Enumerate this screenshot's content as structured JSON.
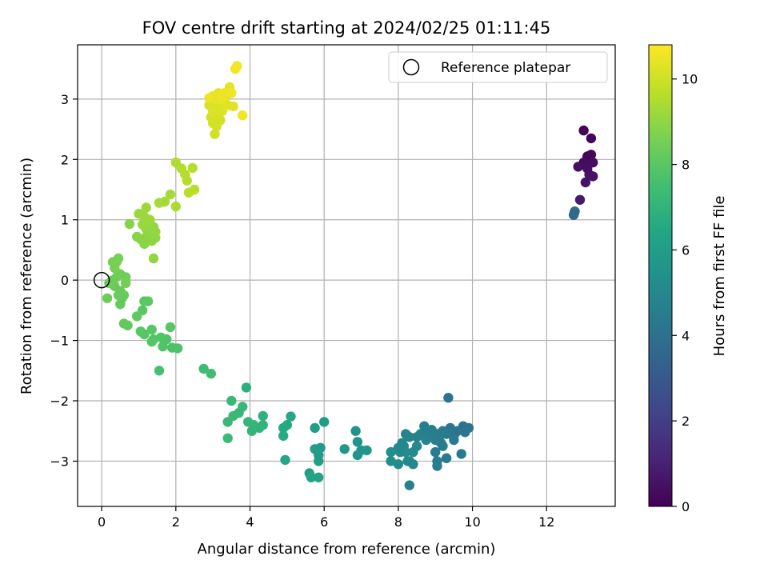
{
  "chart_data": {
    "type": "scatter",
    "title": "FOV centre drift starting at 2024/02/25 01:11:45",
    "xlabel": "Angular distance from reference (arcmin)",
    "ylabel": "Rotation from reference (arcmin)",
    "xlim": [
      -0.65,
      13.85
    ],
    "ylim": [
      -3.75,
      3.9
    ],
    "xticks": [
      0,
      2,
      4,
      6,
      8,
      10,
      12
    ],
    "xtick_labels": [
      "0",
      "2",
      "4",
      "6",
      "8",
      "10",
      "12"
    ],
    "yticks": [
      -3,
      -2,
      -1,
      0,
      1,
      2,
      3
    ],
    "ytick_labels": [
      "−3",
      "−2",
      "−1",
      "0",
      "1",
      "2",
      "3"
    ],
    "grid": true,
    "legend": {
      "position": "top-right",
      "entries": [
        "Reference platepar"
      ]
    },
    "reference_point": {
      "x": 0,
      "y": 0,
      "label": "Reference platepar"
    },
    "colorbar": {
      "label": "Hours from first FF file",
      "range": [
        0,
        10.8
      ],
      "ticks": [
        0,
        2,
        4,
        6,
        8,
        10
      ],
      "tick_labels": [
        "0",
        "2",
        "4",
        "6",
        "8",
        "10"
      ],
      "colormap": "viridis"
    },
    "points": [
      [
        13.0,
        2.48,
        0.1
      ],
      [
        13.2,
        2.35,
        0.15
      ],
      [
        13.1,
        2.05,
        0.2
      ],
      [
        13.2,
        2.08,
        0.25
      ],
      [
        13.0,
        1.95,
        0.3
      ],
      [
        13.25,
        1.95,
        0.35
      ],
      [
        12.85,
        1.88,
        0.4
      ],
      [
        13.1,
        1.85,
        0.45
      ],
      [
        13.15,
        1.75,
        0.5
      ],
      [
        13.25,
        1.72,
        0.55
      ],
      [
        13.05,
        1.62,
        0.6
      ],
      [
        12.9,
        1.33,
        0.8
      ],
      [
        12.75,
        1.12,
        3.5
      ],
      [
        12.73,
        1.08,
        3.6
      ],
      [
        12.76,
        1.14,
        3.7
      ],
      [
        9.35,
        -1.95,
        4.1
      ],
      [
        9.9,
        -2.45,
        4.1
      ],
      [
        9.75,
        -2.42,
        4.15
      ],
      [
        9.6,
        -2.5,
        4.2
      ],
      [
        9.5,
        -2.58,
        4.2
      ],
      [
        9.8,
        -2.52,
        4.25
      ],
      [
        9.4,
        -2.45,
        4.3
      ],
      [
        9.3,
        -2.55,
        4.35
      ],
      [
        9.1,
        -2.6,
        4.4
      ],
      [
        9.2,
        -2.5,
        4.45
      ],
      [
        9.05,
        -2.55,
        4.5
      ],
      [
        9.15,
        -2.7,
        4.5
      ],
      [
        9.0,
        -2.65,
        4.55
      ],
      [
        8.9,
        -2.48,
        4.6
      ],
      [
        8.8,
        -2.55,
        4.6
      ],
      [
        8.7,
        -2.42,
        4.65
      ],
      [
        8.6,
        -2.55,
        4.7
      ],
      [
        8.75,
        -2.65,
        4.75
      ],
      [
        8.5,
        -2.6,
        4.8
      ],
      [
        9.5,
        -2.65,
        4.35
      ],
      [
        9.7,
        -2.88,
        4.3
      ],
      [
        9.3,
        -2.95,
        4.4
      ],
      [
        9.2,
        -2.75,
        4.45
      ],
      [
        9.0,
        -2.85,
        4.5
      ],
      [
        9.05,
        -3.0,
        4.55
      ],
      [
        9.05,
        -3.08,
        4.6
      ],
      [
        8.3,
        -3.4,
        4.7
      ],
      [
        8.2,
        -2.55,
        4.8
      ],
      [
        8.3,
        -2.6,
        4.85
      ],
      [
        8.1,
        -2.7,
        4.9
      ],
      [
        8.0,
        -2.78,
        4.95
      ],
      [
        8.15,
        -2.75,
        5.0
      ],
      [
        8.05,
        -2.85,
        5.05
      ],
      [
        8.2,
        -2.85,
        5.1
      ],
      [
        8.4,
        -2.85,
        5.1
      ],
      [
        8.5,
        -2.75,
        5.0
      ],
      [
        8.25,
        -3.0,
        5.15
      ],
      [
        8.0,
        -3.05,
        5.2
      ],
      [
        7.8,
        -3.0,
        5.25
      ],
      [
        7.8,
        -2.85,
        5.3
      ],
      [
        8.4,
        -3.05,
        5.0
      ],
      [
        8.3,
        -3.0,
        5.05
      ],
      [
        6.85,
        -2.5,
        5.5
      ],
      [
        6.9,
        -2.68,
        5.55
      ],
      [
        6.9,
        -2.9,
        5.6
      ],
      [
        7.0,
        -2.82,
        5.65
      ],
      [
        7.15,
        -2.82,
        5.7
      ],
      [
        6.55,
        -2.8,
        5.75
      ],
      [
        5.9,
        -2.78,
        5.85
      ],
      [
        5.85,
        -2.9,
        5.9
      ],
      [
        5.85,
        -3.0,
        5.95
      ],
      [
        5.75,
        -2.8,
        6.0
      ],
      [
        6.0,
        -2.35,
        5.9
      ],
      [
        5.75,
        -2.45,
        6.0
      ],
      [
        5.6,
        -3.2,
        6.1
      ],
      [
        5.85,
        -3.27,
        6.2
      ],
      [
        5.65,
        -3.27,
        6.25
      ],
      [
        4.95,
        -2.98,
        6.4
      ],
      [
        5.1,
        -2.26,
        6.5
      ],
      [
        4.9,
        -2.45,
        6.5
      ],
      [
        5.0,
        -2.4,
        6.55
      ],
      [
        4.9,
        -2.58,
        6.6
      ],
      [
        3.9,
        -1.78,
        6.8
      ],
      [
        4.35,
        -2.25,
        6.9
      ],
      [
        4.35,
        -2.4,
        6.95
      ],
      [
        4.25,
        -2.45,
        7.0
      ],
      [
        4.05,
        -2.5,
        7.0
      ],
      [
        4.1,
        -2.4,
        7.05
      ],
      [
        3.95,
        -2.35,
        7.1
      ],
      [
        3.7,
        -2.2,
        7.15
      ],
      [
        3.8,
        -2.1,
        7.2
      ],
      [
        3.5,
        -2.0,
        7.2
      ],
      [
        3.55,
        -2.25,
        7.25
      ],
      [
        3.4,
        -2.35,
        7.25
      ],
      [
        3.4,
        -2.62,
        7.3
      ],
      [
        2.75,
        -1.47,
        7.4
      ],
      [
        2.95,
        -1.55,
        7.45
      ],
      [
        1.55,
        -1.5,
        7.6
      ],
      [
        2.05,
        -1.13,
        7.7
      ],
      [
        1.9,
        -1.12,
        7.75
      ],
      [
        1.65,
        -1.1,
        7.8
      ],
      [
        1.75,
        -0.98,
        7.8
      ],
      [
        1.6,
        -0.95,
        7.85
      ],
      [
        1.4,
        -0.98,
        7.85
      ],
      [
        1.35,
        -1.02,
        7.9
      ],
      [
        1.15,
        -0.9,
        7.9
      ],
      [
        1.05,
        -0.85,
        7.95
      ],
      [
        1.35,
        -0.82,
        7.95
      ],
      [
        1.85,
        -0.78,
        8.0
      ],
      [
        1.1,
        -0.5,
        8.0
      ],
      [
        1.15,
        -0.35,
        8.05
      ],
      [
        1.25,
        -0.35,
        8.05
      ],
      [
        0.95,
        -0.6,
        8.1
      ],
      [
        0.7,
        -0.75,
        8.15
      ],
      [
        0.6,
        -0.72,
        8.15
      ],
      [
        0.5,
        -0.4,
        8.2
      ],
      [
        0.55,
        -0.3,
        8.2
      ],
      [
        0.45,
        -0.25,
        8.25
      ],
      [
        0.6,
        -0.25,
        8.25
      ],
      [
        0.5,
        -0.18,
        8.3
      ],
      [
        0.35,
        -0.1,
        8.3
      ],
      [
        0.3,
        0.0,
        8.35
      ],
      [
        0.2,
        -0.05,
        8.35
      ],
      [
        0.15,
        -0.3,
        8.4
      ],
      [
        0.4,
        0.05,
        8.4
      ],
      [
        0.5,
        0.1,
        8.45
      ],
      [
        0.65,
        0.05,
        8.45
      ],
      [
        0.65,
        -0.05,
        8.5
      ],
      [
        0.4,
        0.3,
        8.5
      ],
      [
        0.45,
        0.36,
        8.55
      ],
      [
        0.35,
        0.2,
        8.55
      ],
      [
        0.3,
        0.3,
        8.6
      ],
      [
        0.75,
        0.93,
        8.8
      ],
      [
        0.95,
        0.72,
        8.85
      ],
      [
        1.05,
        0.68,
        8.9
      ],
      [
        1.15,
        0.6,
        8.9
      ],
      [
        1.2,
        0.72,
        8.95
      ],
      [
        1.35,
        0.65,
        8.95
      ],
      [
        1.45,
        0.7,
        9.0
      ],
      [
        1.4,
        0.36,
        9.0
      ],
      [
        1.3,
        0.82,
        9.0
      ],
      [
        1.45,
        0.8,
        9.05
      ],
      [
        1.2,
        0.85,
        9.05
      ],
      [
        1.4,
        0.88,
        9.05
      ],
      [
        1.1,
        0.92,
        9.1
      ],
      [
        1.3,
        0.95,
        9.1
      ],
      [
        1.0,
        1.1,
        9.15
      ],
      [
        1.15,
        1.05,
        9.15
      ],
      [
        1.2,
        1.2,
        9.2
      ],
      [
        1.3,
        1.0,
        9.2
      ],
      [
        1.55,
        1.28,
        9.3
      ],
      [
        1.7,
        1.3,
        9.3
      ],
      [
        1.85,
        1.42,
        9.35
      ],
      [
        2.0,
        1.22,
        9.4
      ],
      [
        2.0,
        1.95,
        9.5
      ],
      [
        2.15,
        1.85,
        9.55
      ],
      [
        2.3,
        1.65,
        9.6
      ],
      [
        2.45,
        1.86,
        9.6
      ],
      [
        2.35,
        1.45,
        9.65
      ],
      [
        2.5,
        1.5,
        9.65
      ],
      [
        2.25,
        1.75,
        9.6
      ],
      [
        3.05,
        2.42,
        10.0
      ],
      [
        3.1,
        2.55,
        10.05
      ],
      [
        3.2,
        2.65,
        10.05
      ],
      [
        3.0,
        2.6,
        10.1
      ],
      [
        2.95,
        2.7,
        10.1
      ],
      [
        3.1,
        2.75,
        10.15
      ],
      [
        3.05,
        2.85,
        10.15
      ],
      [
        2.9,
        2.9,
        10.2
      ],
      [
        3.2,
        2.95,
        10.2
      ],
      [
        3.0,
        2.8,
        10.25
      ],
      [
        3.25,
        2.8,
        10.25
      ],
      [
        3.4,
        2.9,
        10.3
      ],
      [
        3.55,
        2.88,
        10.3
      ],
      [
        3.35,
        3.05,
        10.35
      ],
      [
        3.15,
        3.1,
        10.35
      ],
      [
        3.45,
        3.2,
        10.4
      ],
      [
        3.0,
        3.05,
        10.4
      ],
      [
        3.1,
        3.0,
        10.45
      ],
      [
        3.25,
        3.0,
        10.5
      ],
      [
        3.3,
        3.1,
        10.5
      ],
      [
        3.5,
        3.1,
        10.55
      ],
      [
        3.6,
        3.5,
        10.6
      ],
      [
        3.65,
        3.55,
        10.65
      ],
      [
        3.8,
        2.73,
        10.6
      ],
      [
        2.9,
        3.02,
        10.5
      ]
    ]
  }
}
